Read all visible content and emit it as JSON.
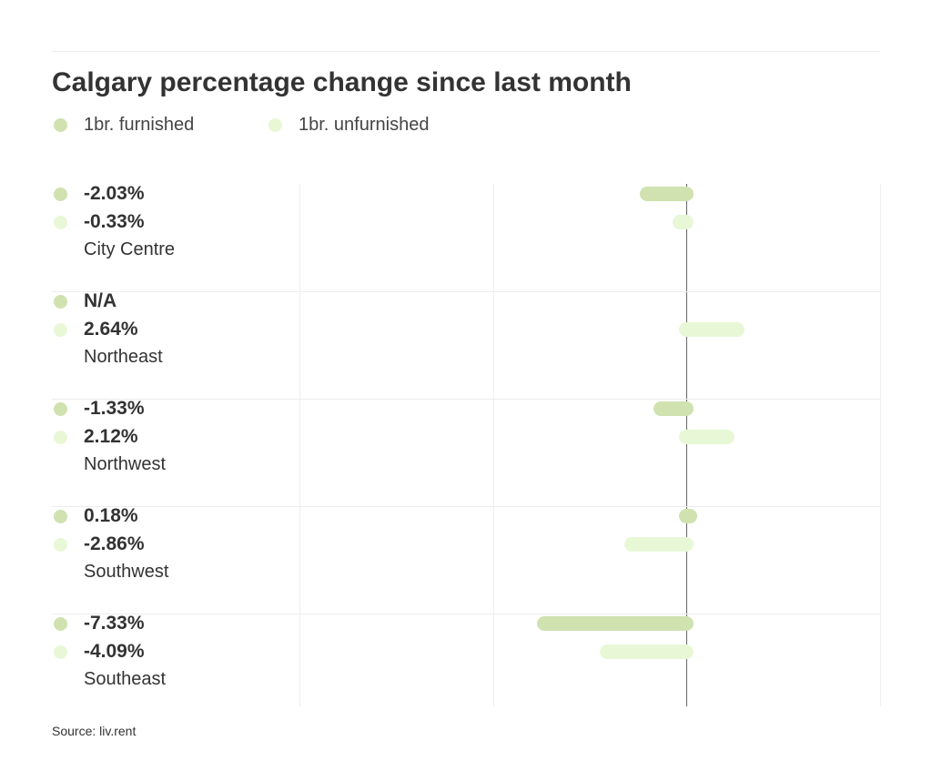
{
  "chart_data": {
    "type": "bar",
    "orientation": "horizontal",
    "title": "Calgary percentage change since last month",
    "categories": [
      "City Centre",
      "Northeast",
      "Northwest",
      "Southwest",
      "Southeast"
    ],
    "series": [
      {
        "name": "1br. furnished",
        "color": "#cfe2b0",
        "values": [
          -2.03,
          null,
          -1.33,
          0.18,
          -7.33
        ],
        "labels": [
          "-2.03%",
          "N/A",
          "-1.33%",
          "0.18%",
          "-7.33%"
        ]
      },
      {
        "name": "1br. unfurnished",
        "color": "#e8f8d6",
        "values": [
          -0.33,
          2.64,
          2.12,
          -2.86,
          -4.09
        ],
        "labels": [
          "-0.33%",
          "2.64%",
          "2.12%",
          "-2.86%",
          "-4.09%"
        ]
      }
    ],
    "xlim": [
      -20,
      10
    ],
    "gridlines": [
      -20,
      -10,
      0,
      10
    ],
    "xlabel": "",
    "ylabel": "",
    "legend": "top-left",
    "source": "Source: liv.rent"
  }
}
